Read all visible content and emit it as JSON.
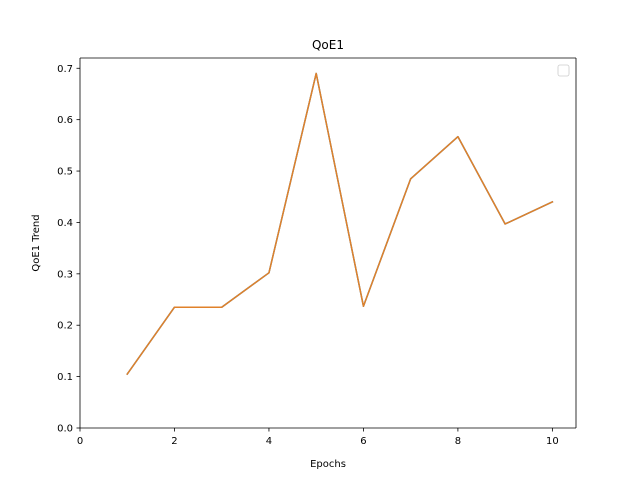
{
  "chart_data": {
    "type": "line",
    "title": "QoE1",
    "xlabel": "Epochs",
    "ylabel": "QoE1 Trend",
    "xlim": [
      0,
      10.5
    ],
    "ylim": [
      0,
      0.72
    ],
    "xticks": [
      0,
      2,
      4,
      6,
      8,
      10
    ],
    "xtick_labels": [
      "0",
      "2",
      "4",
      "6",
      "8",
      "10"
    ],
    "yticks": [
      0.0,
      0.1,
      0.2,
      0.3,
      0.4,
      0.5,
      0.6,
      0.7
    ],
    "ytick_labels": [
      "0.0",
      "0.1",
      "0.2",
      "0.3",
      "0.4",
      "0.5",
      "0.6",
      "0.7"
    ],
    "grid": false,
    "legend": {
      "position": "top-right",
      "entries": []
    },
    "series": [
      {
        "color": "#1f77b4",
        "x": [
          1,
          2,
          3,
          4,
          5,
          6,
          7,
          8,
          9,
          10
        ],
        "y": [
          0.105,
          0.235,
          0.235,
          0.302,
          0.69,
          0.237,
          0.485,
          0.567,
          0.397,
          0.44
        ]
      },
      {
        "color": "#e0812a",
        "x": [
          1,
          2,
          3,
          4,
          5,
          6,
          7,
          8,
          9,
          10
        ],
        "y": [
          0.105,
          0.235,
          0.235,
          0.302,
          0.69,
          0.237,
          0.485,
          0.567,
          0.397,
          0.44
        ]
      }
    ]
  }
}
